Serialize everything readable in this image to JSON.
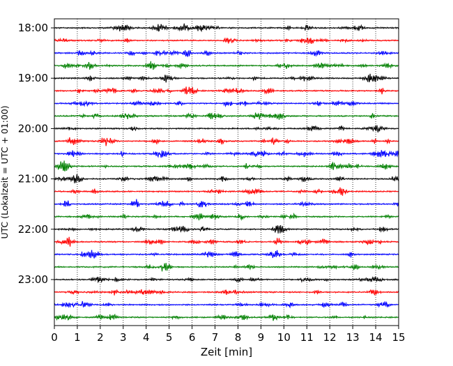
{
  "chart_data": {
    "type": "line",
    "title": "",
    "xlabel": "Zeit  [min]",
    "ylabel": "UTC (Lokalzeit = UTC + 01:00)",
    "xlim": [
      0,
      15
    ],
    "x_ticks": [
      "0",
      "1",
      "2",
      "3",
      "4",
      "5",
      "6",
      "7",
      "8",
      "9",
      "10",
      "11",
      "12",
      "13",
      "14",
      "15"
    ],
    "y_ticks": [
      "18:00",
      "19:00",
      "20:00",
      "21:00",
      "22:00",
      "23:00"
    ],
    "y_tick_rows": [
      0,
      4,
      8,
      12,
      16,
      20
    ],
    "row_interval_minutes": 15,
    "rows": 24,
    "start_time": "18:00",
    "grid": {
      "vertical_dotted": true
    },
    "series_colors": [
      "#000000",
      "#ff0000",
      "#0000ff",
      "#008000"
    ]
  }
}
